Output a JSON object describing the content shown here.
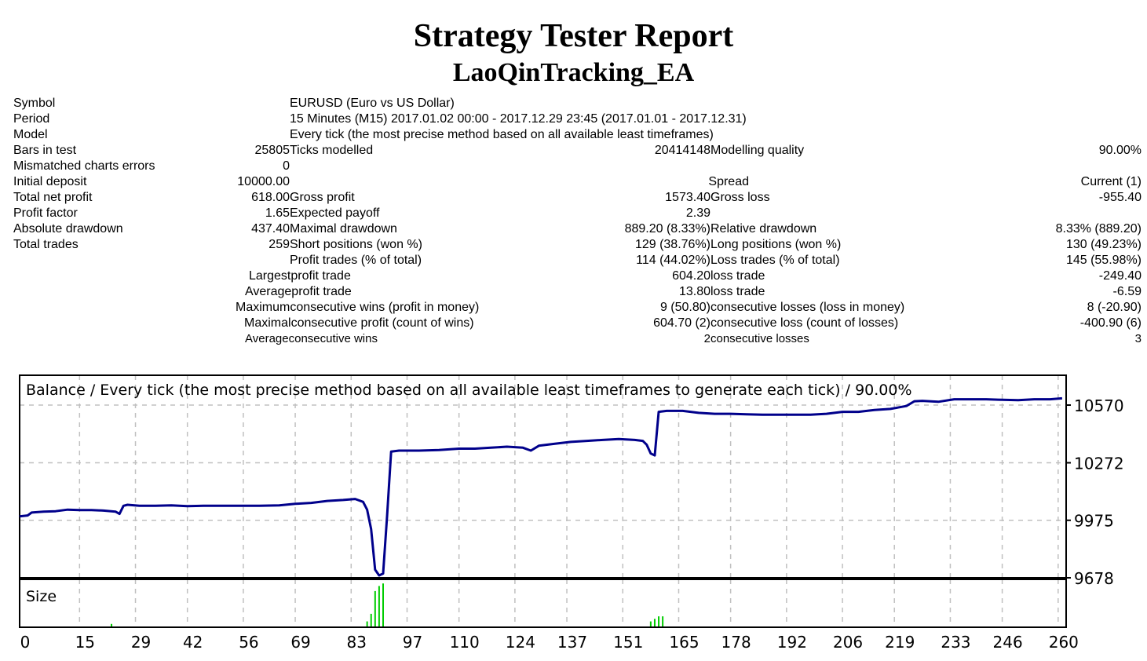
{
  "header": {
    "title": "Strategy Tester Report",
    "subtitle": "LaoQinTracking_EA"
  },
  "stats": {
    "symbol_label": "Symbol",
    "symbol_value": "EURUSD (Euro vs US Dollar)",
    "period_label": "Period",
    "period_value": "15 Minutes (M15) 2017.01.02 00:00 - 2017.12.29 23:45 (2017.01.01 - 2017.12.31)",
    "model_label": "Model",
    "model_value": "Every tick (the most precise method based on all available least timeframes)",
    "bars_label": "Bars in test",
    "bars_value": "25805",
    "ticks_label": "Ticks modelled",
    "ticks_value": "20414148",
    "quality_label": "Modelling quality",
    "quality_value": "90.00%",
    "mismatch_label": "Mismatched charts errors",
    "mismatch_value": "0",
    "deposit_label": "Initial deposit",
    "deposit_value": "10000.00",
    "spread_label": "Spread",
    "spread_value": "Current (1)",
    "net_profit_label": "Total net profit",
    "net_profit_value": "618.00",
    "gross_profit_label": "Gross profit",
    "gross_profit_value": "1573.40",
    "gross_loss_label": "Gross loss",
    "gross_loss_value": "-955.40",
    "profit_factor_label": "Profit factor",
    "profit_factor_value": "1.65",
    "expected_payoff_label": "Expected payoff",
    "expected_payoff_value": "2.39",
    "abs_dd_label": "Absolute drawdown",
    "abs_dd_value": "437.40",
    "max_dd_label": "Maximal drawdown",
    "max_dd_value": "889.20 (8.33%)",
    "rel_dd_label": "Relative drawdown",
    "rel_dd_value": "8.33% (889.20)",
    "total_trades_label": "Total trades",
    "total_trades_value": "259",
    "short_label": "Short positions (won %)",
    "short_value": "129 (38.76%)",
    "long_label": "Long positions (won %)",
    "long_value": "130 (49.23%)",
    "profit_trades_label": "Profit trades (% of total)",
    "profit_trades_value": "114 (44.02%)",
    "loss_trades_label": "Loss trades (% of total)",
    "loss_trades_value": "145 (55.98%)",
    "largest_profit_label": "Largestprofit trade",
    "largest_profit_value": "604.20",
    "largest_loss_label": "loss trade",
    "largest_loss_value": "-249.40",
    "average_profit_label": "Averageprofit trade",
    "average_profit_value": "13.80",
    "average_loss_label": "loss trade",
    "average_loss_value": "-6.59",
    "max_cons_wins_label": "Maximumconsecutive wins (profit in money)",
    "max_cons_wins_value": "9 (50.80)",
    "max_cons_losses_label": "consecutive losses (loss in money)",
    "max_cons_losses_value": "8 (-20.90)",
    "maximal_cons_profit_label": "Maximalconsecutive profit (count of wins)",
    "maximal_cons_profit_value": "604.70 (2)",
    "maximal_cons_loss_label": "consecutive loss (count of losses)",
    "maximal_cons_loss_value": "-400.90 (6)",
    "avg_cons_wins_label": "Averageconsecutive wins",
    "avg_cons_wins_value": "2",
    "avg_cons_losses_label": "consecutive losses",
    "avg_cons_losses_value": "3"
  },
  "colors": {
    "balance_line": "#00008b",
    "size_bars": "#00cc00",
    "grid": "#c0c0c0",
    "border": "#000000"
  },
  "chart_data": {
    "type": "line",
    "title": "Balance / Every tick (the most precise method based on all available least timeframes to generate each tick) / 90.00%",
    "size_title": "Size",
    "xlim": [
      0,
      262
    ],
    "ylim": [
      9678,
      10650
    ],
    "x_ticks": [
      0,
      15,
      29,
      42,
      56,
      69,
      83,
      97,
      110,
      124,
      137,
      151,
      165,
      178,
      192,
      206,
      219,
      233,
      246,
      260
    ],
    "y_ticks": [
      10570,
      10272,
      9975,
      9678
    ],
    "grid": true,
    "series": [
      {
        "x": [
          0,
          2,
          3,
          6,
          9,
          12,
          15,
          18,
          21,
          24,
          25,
          26,
          27,
          30,
          34,
          38,
          42,
          46,
          50,
          55,
          60,
          65,
          69,
          73,
          77,
          81,
          84,
          86,
          87,
          88,
          89,
          90,
          91,
          92,
          93,
          95,
          100,
          105,
          110,
          114,
          118,
          122,
          126,
          128,
          130,
          134,
          138,
          142,
          146,
          150,
          154,
          156,
          157,
          158,
          159,
          160,
          162,
          166,
          170,
          174,
          178,
          182,
          186,
          190,
          194,
          198,
          202,
          206,
          210,
          214,
          218,
          222,
          224,
          226,
          230,
          234,
          238,
          242,
          246,
          250,
          254,
          258,
          261
        ],
        "values": [
          9995,
          10000,
          10015,
          10020,
          10022,
          10030,
          10028,
          10028,
          10025,
          10020,
          10008,
          10050,
          10055,
          10050,
          10050,
          10052,
          10048,
          10050,
          10050,
          10050,
          10050,
          10052,
          10060,
          10065,
          10075,
          10080,
          10085,
          10070,
          10030,
          9930,
          9720,
          9690,
          9700,
          10000,
          10330,
          10335,
          10335,
          10338,
          10345,
          10345,
          10350,
          10355,
          10350,
          10335,
          10360,
          10370,
          10380,
          10385,
          10390,
          10395,
          10390,
          10385,
          10365,
          10320,
          10310,
          10535,
          10540,
          10540,
          10530,
          10525,
          10525,
          10522,
          10520,
          10520,
          10520,
          10520,
          10525,
          10535,
          10535,
          10545,
          10550,
          10565,
          10590,
          10592,
          10587,
          10600,
          10600,
          10600,
          10597,
          10595,
          10600,
          10600,
          10605
        ]
      }
    ],
    "size_series": {
      "x": [
        23,
        87,
        88,
        89,
        90,
        91,
        158,
        159,
        160,
        161
      ],
      "values": [
        1,
        2,
        5,
        14,
        16,
        17,
        2,
        3,
        4,
        4
      ],
      "ylim": [
        0,
        18
      ]
    }
  }
}
